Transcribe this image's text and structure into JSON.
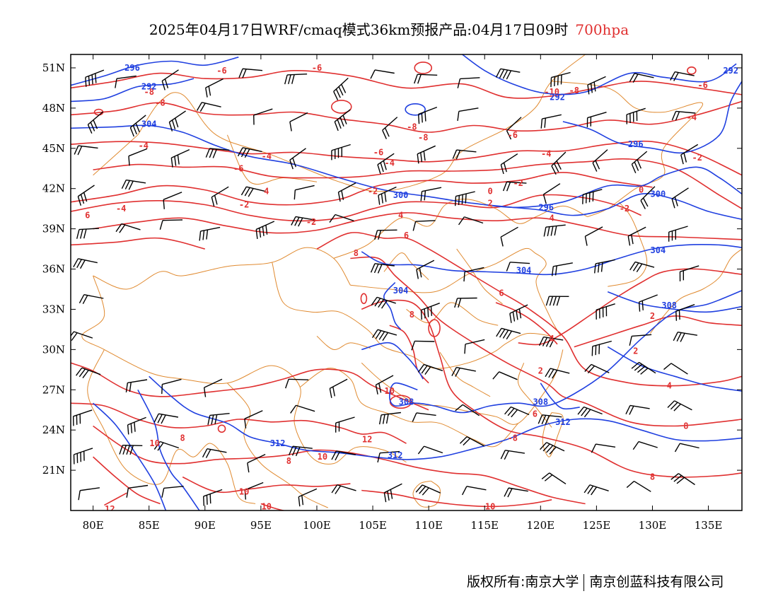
{
  "title": {
    "main": "2025年04月17日WRF/cmaq模式36km预报产品:04月17日09时",
    "level": "700hpa"
  },
  "axes": {
    "lat_labels": [
      "51N",
      "48N",
      "45N",
      "42N",
      "39N",
      "36N",
      "33N",
      "30N",
      "27N",
      "24N",
      "21N"
    ],
    "lat_values": [
      51,
      48,
      45,
      42,
      39,
      36,
      33,
      30,
      27,
      24,
      21
    ],
    "lon_labels": [
      "80E",
      "85E",
      "90E",
      "95E",
      "100E",
      "105E",
      "110E",
      "115E",
      "120E",
      "125E",
      "130E",
      "135E"
    ],
    "lon_values": [
      80,
      85,
      90,
      95,
      100,
      105,
      110,
      115,
      120,
      125,
      130,
      135
    ],
    "lon_range": [
      78,
      138
    ],
    "lat_range": [
      18,
      52
    ]
  },
  "colors": {
    "temperature": "#e03030",
    "height": "#2040e0",
    "border": "#e08a30",
    "wind": "#000000"
  },
  "temperature_contours": [
    {
      "label": "-6",
      "lon": 91.5,
      "lat": 50.8
    },
    {
      "label": "-6",
      "lon": 100.0,
      "lat": 51.0
    },
    {
      "label": "-8",
      "lon": 85.0,
      "lat": 49.2
    },
    {
      "label": "-8",
      "lon": 86.0,
      "lat": 48.4
    },
    {
      "label": "-8",
      "lon": 108.5,
      "lat": 46.6
    },
    {
      "label": "-8",
      "lon": 109.5,
      "lat": 45.8
    },
    {
      "label": "-10",
      "lon": 121.0,
      "lat": 49.2
    },
    {
      "label": "-8",
      "lon": 123.0,
      "lat": 49.3
    },
    {
      "label": "-6",
      "lon": 117.5,
      "lat": 46.0
    },
    {
      "label": "-6",
      "lon": 105.5,
      "lat": 44.7
    },
    {
      "label": "-4",
      "lon": 84.5,
      "lat": 45.2
    },
    {
      "label": "-4",
      "lon": 95.5,
      "lat": 44.4
    },
    {
      "label": "-4",
      "lon": 106.5,
      "lat": 43.9
    },
    {
      "label": "-4",
      "lon": 120.5,
      "lat": 44.6
    },
    {
      "label": "-6",
      "lon": 93.0,
      "lat": 43.5
    },
    {
      "label": "-2",
      "lon": 105.0,
      "lat": 41.8
    },
    {
      "label": "-2",
      "lon": 93.5,
      "lat": 40.8
    },
    {
      "label": "-2",
      "lon": 99.5,
      "lat": 39.5
    },
    {
      "label": "-2",
      "lon": 118.0,
      "lat": 42.4
    },
    {
      "label": "0",
      "lon": 115.5,
      "lat": 41.8
    },
    {
      "label": "2",
      "lon": 115.5,
      "lat": 40.9
    },
    {
      "label": "-4",
      "lon": 82.5,
      "lat": 40.5
    },
    {
      "label": "4",
      "lon": 95.5,
      "lat": 41.8
    },
    {
      "label": "4",
      "lon": 107.5,
      "lat": 40.0
    },
    {
      "label": "4",
      "lon": 121.0,
      "lat": 39.8
    },
    {
      "label": "6",
      "lon": 108.0,
      "lat": 38.5
    },
    {
      "label": "8",
      "lon": 103.5,
      "lat": 37.2
    },
    {
      "label": "6",
      "lon": 79.5,
      "lat": 40.0
    },
    {
      "label": "6",
      "lon": 116.5,
      "lat": 34.2
    },
    {
      "label": "8",
      "lon": 108.5,
      "lat": 32.6
    },
    {
      "label": "4",
      "lon": 121.0,
      "lat": 30.8
    },
    {
      "label": "2",
      "lon": 120.0,
      "lat": 28.4
    },
    {
      "label": "6",
      "lon": 119.5,
      "lat": 25.2
    },
    {
      "label": "-8",
      "lon": 117.5,
      "lat": 23.4
    },
    {
      "label": "10",
      "lon": 106.5,
      "lat": 26.9
    },
    {
      "label": "12",
      "lon": 104.5,
      "lat": 23.3
    },
    {
      "label": "10",
      "lon": 100.5,
      "lat": 22.0
    },
    {
      "label": "8",
      "lon": 97.5,
      "lat": 21.7
    },
    {
      "label": "8",
      "lon": 88.0,
      "lat": 23.4
    },
    {
      "label": "10",
      "lon": 85.5,
      "lat": 23.0
    },
    {
      "label": "10",
      "lon": 93.5,
      "lat": 19.4
    },
    {
      "label": "10",
      "lon": 95.5,
      "lat": 18.3
    },
    {
      "label": "10",
      "lon": 98.5,
      "lat": 17.5
    },
    {
      "label": "12",
      "lon": 81.5,
      "lat": 18.1
    },
    {
      "label": "10",
      "lon": 115.5,
      "lat": 18.3
    },
    {
      "label": "8",
      "lon": 130.0,
      "lat": 20.5
    },
    {
      "label": "8",
      "lon": 133.0,
      "lat": 24.3
    },
    {
      "label": "4",
      "lon": 131.5,
      "lat": 27.3
    },
    {
      "label": "2",
      "lon": 128.5,
      "lat": 29.9
    },
    {
      "label": "2",
      "lon": 130.0,
      "lat": 32.5
    },
    {
      "label": "-2",
      "lon": 127.5,
      "lat": 40.5
    },
    {
      "label": "0",
      "lon": 129.0,
      "lat": 41.9
    },
    {
      "label": "-4",
      "lon": 133.5,
      "lat": 47.3
    },
    {
      "label": "-6",
      "lon": 134.5,
      "lat": 49.7
    },
    {
      "label": "-2",
      "lon": 134.0,
      "lat": 44.3
    }
  ],
  "height_contours": [
    {
      "label": "296",
      "lon": 83.5,
      "lat": 51.0
    },
    {
      "label": "292",
      "lon": 85.0,
      "lat": 49.6
    },
    {
      "label": "304",
      "lon": 85.0,
      "lat": 46.8
    },
    {
      "label": "292",
      "lon": 121.5,
      "lat": 48.8
    },
    {
      "label": "292",
      "lon": 137.0,
      "lat": 50.8
    },
    {
      "label": "296",
      "lon": 128.5,
      "lat": 45.3
    },
    {
      "label": "300",
      "lon": 107.5,
      "lat": 41.5
    },
    {
      "label": "300",
      "lon": 130.5,
      "lat": 41.6
    },
    {
      "label": "296",
      "lon": 120.5,
      "lat": 40.6
    },
    {
      "label": "304",
      "lon": 130.5,
      "lat": 37.4
    },
    {
      "label": "304",
      "lon": 118.5,
      "lat": 35.9
    },
    {
      "label": "304",
      "lon": 107.5,
      "lat": 34.4
    },
    {
      "label": "308",
      "lon": 131.5,
      "lat": 33.3
    },
    {
      "label": "308",
      "lon": 108.0,
      "lat": 26.1
    },
    {
      "label": "308",
      "lon": 120.0,
      "lat": 26.1
    },
    {
      "label": "312",
      "lon": 122.0,
      "lat": 24.6
    },
    {
      "label": "312",
      "lon": 96.5,
      "lat": 23.0
    },
    {
      "label": "312",
      "lon": 107.0,
      "lat": 22.1
    }
  ],
  "footer": {
    "left": "版权所有:南京大学",
    "right": "南京创蓝科技有限公司"
  }
}
